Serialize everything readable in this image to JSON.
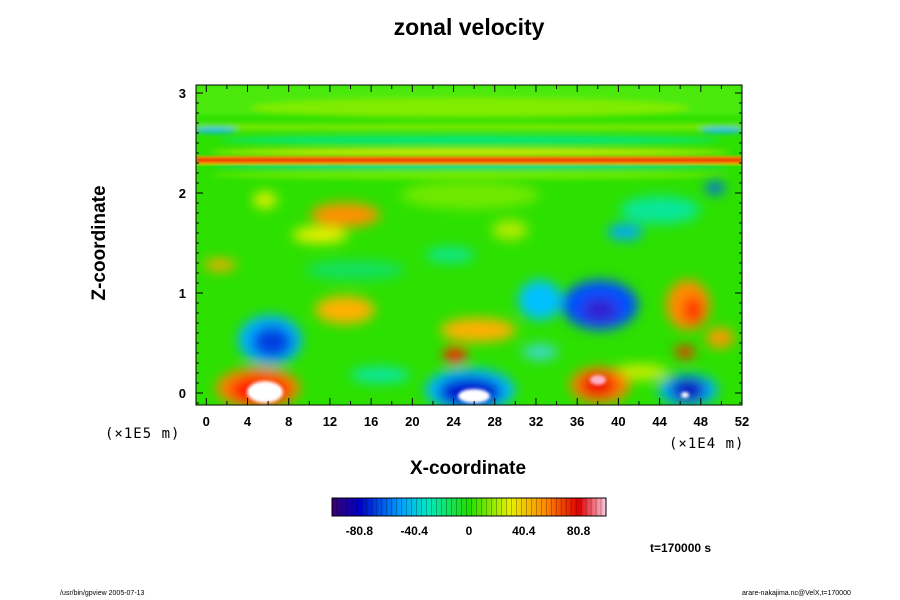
{
  "chart_data": {
    "type": "heatmap",
    "title": "zonal velocity",
    "xlabel": "X-coordinate",
    "ylabel": "Z-coordinate",
    "x_unit": "(×1E4 m)",
    "y_unit": "(×1E5 m)",
    "xlim": [
      -1,
      52
    ],
    "ylim": [
      -0.12,
      3.08
    ],
    "x_ticks": [
      "0",
      "4",
      "8",
      "12",
      "16",
      "20",
      "24",
      "28",
      "32",
      "36",
      "40",
      "44",
      "48",
      "52"
    ],
    "y_ticks": [
      "0",
      "1",
      "2",
      "3"
    ],
    "colorbar": {
      "range": [
        -101,
        101
      ],
      "ticks": [
        "-80.8",
        "-40.4",
        "0",
        "40.4",
        "80.8"
      ],
      "colormap": "rainbow (purple-blue-cyan-green-yellow-red-pink)"
    },
    "features": [
      {
        "x": 5.5,
        "z": 0.08,
        "value": 101,
        "desc": "strong positive core"
      },
      {
        "x": 25.5,
        "z": 0.08,
        "value": -101,
        "desc": "strong negative core"
      },
      {
        "x": 39,
        "z": 0.08,
        "value": 90
      },
      {
        "x": 47.5,
        "z": 0.08,
        "value": -90
      },
      {
        "x": 7,
        "z": 0.55,
        "value": -55
      },
      {
        "x": 38,
        "z": 0.9,
        "value": -60
      },
      {
        "x": 14,
        "z": 1.8,
        "value": 75
      },
      {
        "x": 25,
        "z": 0.65,
        "value": 45
      },
      {
        "x": 48,
        "z": 0.8,
        "value": 45
      },
      {
        "x": 26,
        "z": 2.33,
        "value": 80,
        "desc": "thin positive band"
      },
      {
        "x": 26,
        "z": 2.62,
        "value": -30,
        "desc": "thin negative band"
      }
    ]
  },
  "time_label": "t=170000 s",
  "footer_left": "/usr/bin/gpview 2005-07-13",
  "footer_right": "arare-nakajima.nc@VelX,t=170000"
}
